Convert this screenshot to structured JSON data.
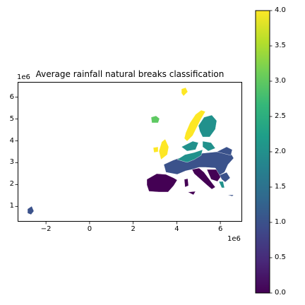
{
  "chart": {
    "title": "Average rainfall natural breaks classification",
    "x_exponent": "1e6",
    "y_exponent": "1e6",
    "x_ticks": [
      {
        "label": "−2",
        "value": -2
      },
      {
        "label": "0",
        "value": 0
      },
      {
        "label": "2",
        "value": 2
      },
      {
        "label": "4",
        "value": 4
      },
      {
        "label": "6",
        "value": 6
      }
    ],
    "y_ticks": [
      {
        "label": "1",
        "value": 1
      },
      {
        "label": "2",
        "value": 2
      },
      {
        "label": "3",
        "value": 3
      },
      {
        "label": "4",
        "value": 4
      },
      {
        "label": "5",
        "value": 5
      },
      {
        "label": "6",
        "value": 6
      }
    ],
    "xlim": [
      -3.3,
      7.0
    ],
    "ylim": [
      0.3,
      6.7
    ]
  },
  "colorbar": {
    "range": [
      0,
      4
    ],
    "ticks": [
      {
        "label": "0.0",
        "value": 0.0
      },
      {
        "label": "0.5",
        "value": 0.5
      },
      {
        "label": "1.0",
        "value": 1.0
      },
      {
        "label": "1.5",
        "value": 1.5
      },
      {
        "label": "2.0",
        "value": 2.0
      },
      {
        "label": "2.5",
        "value": 2.5
      },
      {
        "label": "3.0",
        "value": 3.0
      },
      {
        "label": "3.5",
        "value": 3.5
      },
      {
        "label": "4.0",
        "value": 4.0
      }
    ],
    "colormap": "viridis",
    "stops": [
      "#440154",
      "#482878",
      "#3e4989",
      "#31688e",
      "#26828e",
      "#1f9e89",
      "#35b779",
      "#6ece58",
      "#b5de2b",
      "#fde725"
    ]
  },
  "classes": {
    "0": "#440154",
    "1": "#3b528b",
    "2": "#21918c",
    "3": "#5ec962",
    "4": "#fde725"
  }
}
